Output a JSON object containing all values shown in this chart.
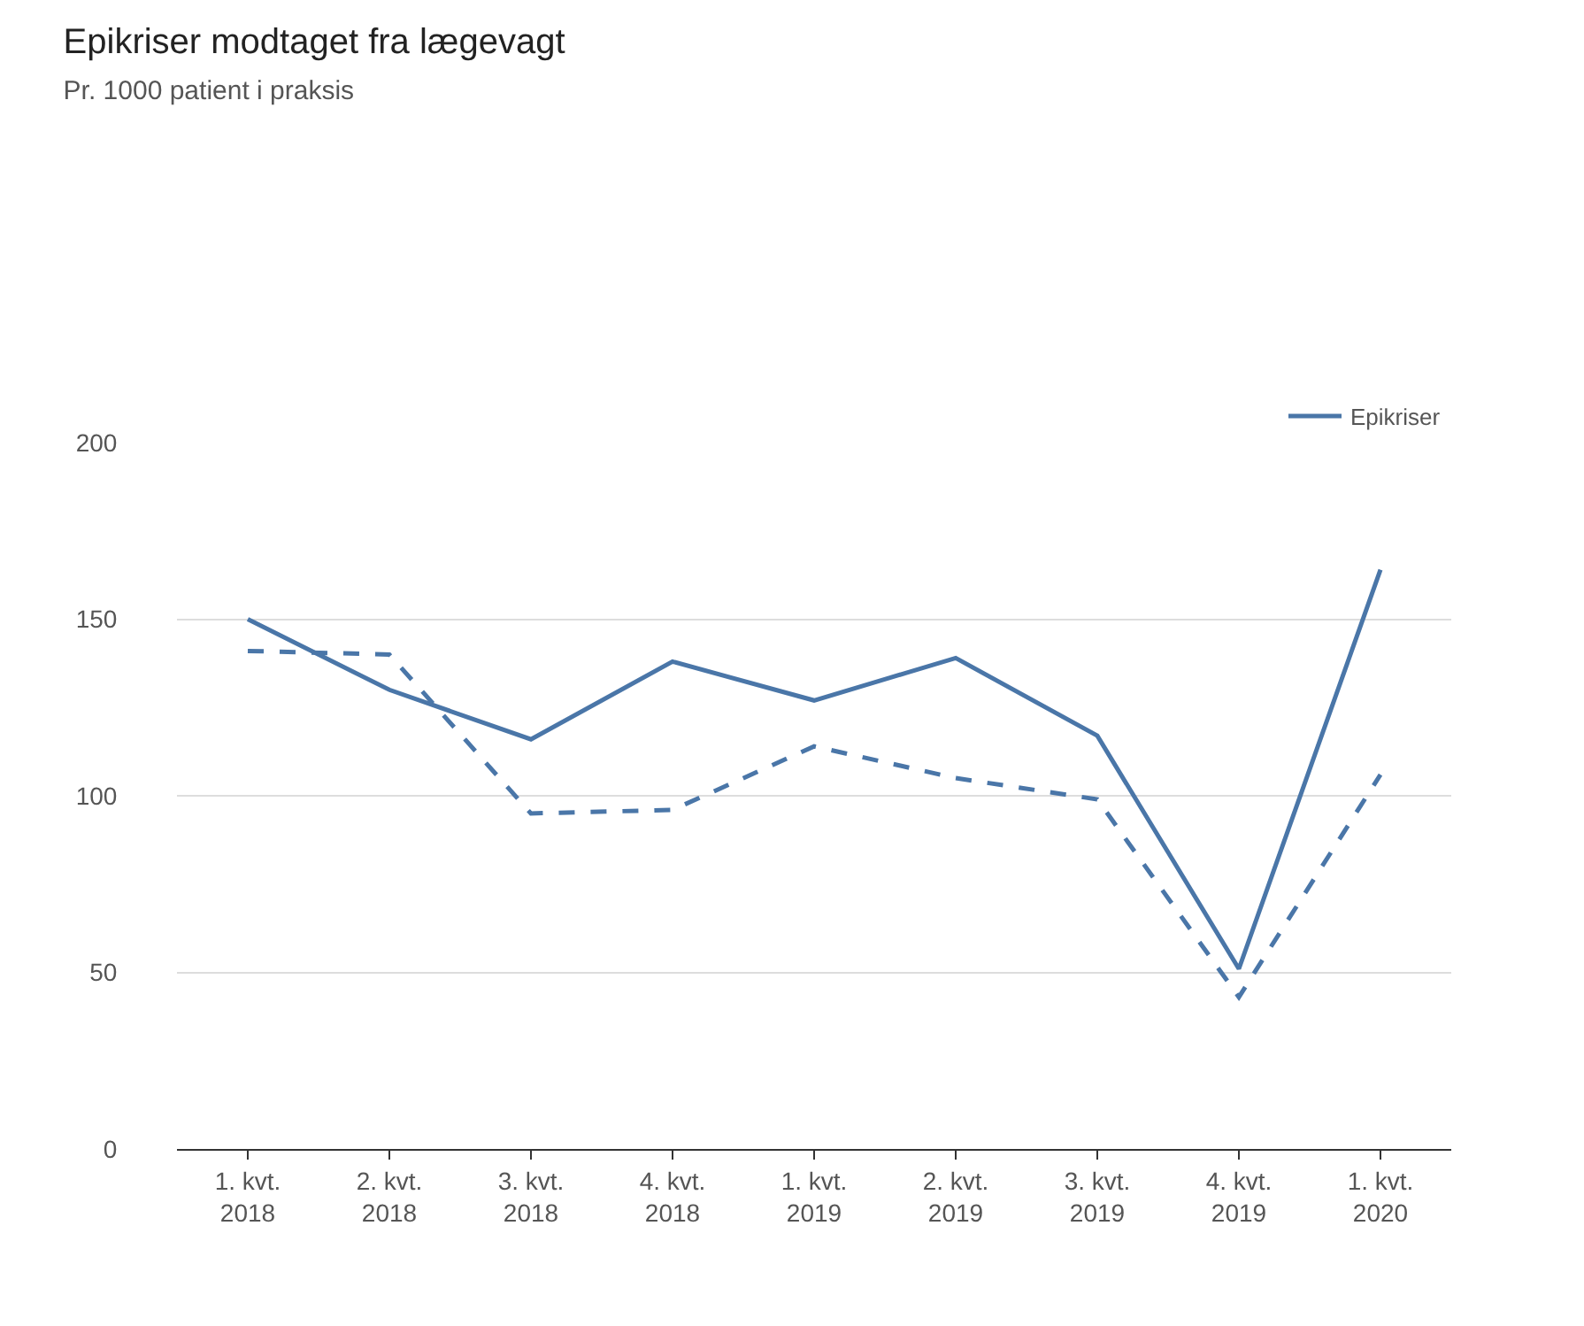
{
  "chart_data": {
    "type": "line",
    "title": "Epikriser modtaget fra lægevagt",
    "subtitle": "Pr. 1000 patient i praksis",
    "categories": [
      "1. kvt.\n2018",
      "2. kvt.\n2018",
      "3. kvt.\n2018",
      "4. kvt.\n2018",
      "1. kvt.\n2019",
      "2. kvt.\n2019",
      "3. kvt.\n2019",
      "4. kvt.\n2019",
      "1. kvt.\n2020"
    ],
    "series": [
      {
        "name": "Epikriser",
        "color": "#4a76a8",
        "line_style": "solid",
        "values": [
          150,
          130,
          116,
          138,
          127,
          139,
          117,
          51,
          164
        ]
      },
      {
        "color": "#4a76a8",
        "line_style": "dashed",
        "values": [
          141,
          140,
          95,
          96,
          114,
          105,
          99,
          43,
          106
        ]
      }
    ],
    "ylim": [
      0,
      200
    ],
    "yticks": [
      0,
      50,
      100,
      150,
      200
    ],
    "grid": "y",
    "legend": "top right",
    "marker": "none"
  }
}
